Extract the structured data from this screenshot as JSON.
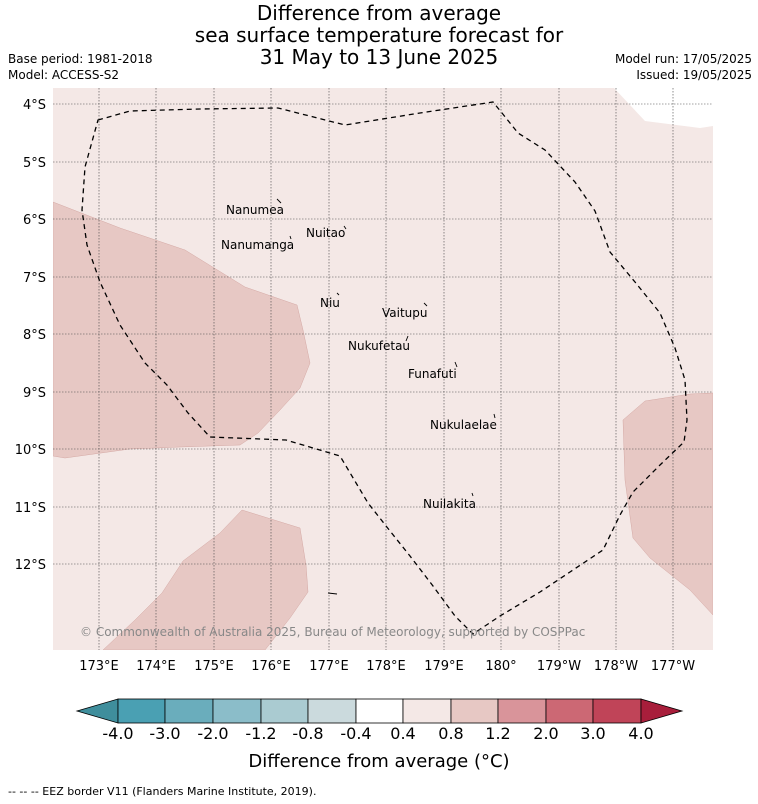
{
  "title": {
    "line1": "Difference from average",
    "line2": "sea surface temperature forecast for",
    "line3": "31 May to 13 June 2025"
  },
  "meta": {
    "base_period": "Base period: 1981-2018",
    "model": "Model: ACCESS-S2",
    "model_run": "Model run: 17/05/2025",
    "issued": "Issued: 19/05/2025"
  },
  "map": {
    "lat_labels": [
      "4°S",
      "5°S",
      "6°S",
      "7°S",
      "8°S",
      "9°S",
      "10°S",
      "11°S",
      "12°S"
    ],
    "lon_labels": [
      "173°E",
      "174°E",
      "175°E",
      "176°E",
      "177°E",
      "178°E",
      "179°E",
      "180°",
      "179°W",
      "178°W",
      "177°W"
    ],
    "places": [
      "Nanumea",
      "Nuitao",
      "Nanumanga",
      "Niu",
      "Vaitupu",
      "Nukufetau",
      "Funafuti",
      "Nukulaelae",
      "Nuilakita"
    ],
    "copyright": "© Commonwealth of Australia 2025, Bureau of Meteorology, supported by COSPPac",
    "colors": {
      "background": "#f4e8e6",
      "anomaly_0_8_to_1_2": "#e7c8c4"
    }
  },
  "colorbar": {
    "ticks": [
      "-4.0",
      "-3.0",
      "-2.0",
      "-1.2",
      "-0.8",
      "-0.4",
      "0.4",
      "0.8",
      "1.2",
      "2.0",
      "3.0",
      "4.0"
    ],
    "colors": [
      "#3f8e9c",
      "#4aa0b3",
      "#6aadbc",
      "#8bbdc9",
      "#aacbd1",
      "#cbdadd",
      "#ffffff",
      "#f4e8e6",
      "#e7c8c4",
      "#d9949a",
      "#cc6874",
      "#c04458",
      "#a81e3b"
    ],
    "label": "Difference from average (°C)"
  },
  "footer": "-- -- -- EEZ border V11 (Flanders Marine Institute, 2019)."
}
